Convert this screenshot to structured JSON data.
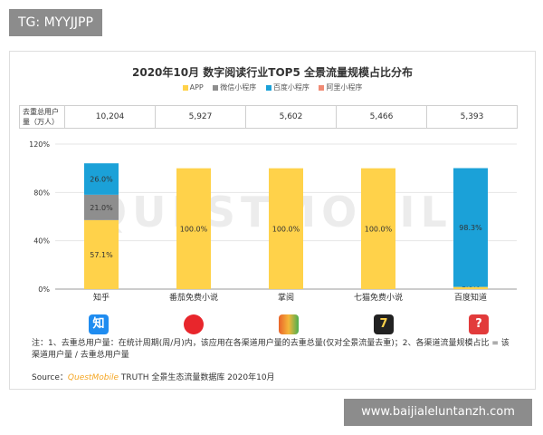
{
  "watermark_top": "TG: MYYJJPP",
  "watermark_bottom": "www.baijialeluntanzh.com",
  "colors": {
    "app": "#ffd24a",
    "wechat": "#8e8e8e",
    "baidu": "#1ba1d8",
    "alipay": "#f08a74",
    "zhihu_icon": "#1f8cf0",
    "fanqie_icon": "#e8262c",
    "zhangyue_icon": "#e9642a",
    "qimao_icon": "#222222",
    "baidu_icon": "#e23b3b"
  },
  "chart_data": {
    "type": "bar",
    "title": "2020年10月 数字阅读行业TOP5 全景流量规模占比分布",
    "categories": [
      "知乎",
      "番茄免费小说",
      "掌阅",
      "七猫免费小说",
      "百度知道"
    ],
    "series": [
      {
        "name": "APP",
        "values": [
          57.1,
          100.0,
          100.0,
          100.0,
          1.8
        ]
      },
      {
        "name": "微信小程序",
        "values": [
          21.0,
          0,
          0,
          0,
          0
        ]
      },
      {
        "name": "百度小程序",
        "values": [
          26.0,
          0,
          0,
          0,
          98.3
        ]
      },
      {
        "name": "阿里小程序",
        "values": [
          0,
          0,
          0,
          0,
          0
        ]
      }
    ],
    "bar_labels": [
      [
        "57.1%",
        "21.0%",
        "26.0%"
      ],
      [
        "100.0%"
      ],
      [
        "100.0%"
      ],
      [
        "100.0%"
      ],
      [
        "1.8%",
        "98.3%"
      ]
    ],
    "ylim": [
      0,
      120
    ],
    "yticks": [
      "0%",
      "40%",
      "80%",
      "120%"
    ],
    "stacked": true
  },
  "users_table": {
    "header": "去重总用户量（万人）",
    "values": [
      "10,204",
      "5,927",
      "5,602",
      "5,466",
      "5,393"
    ]
  },
  "app_icons": [
    "知",
    "",
    "",
    "7",
    "?"
  ],
  "note": "注：1、去重总用户量：在统计周期(周/月)内，该应用在各渠道用户量的去重总量(仅对全景流量去重)；2、各渠道流量规模占比 = 该渠道用户量 / 去重总用户量",
  "source": {
    "prefix": "Source：",
    "brand": "QuestMobile",
    "rest": " TRUTH 全景生态流量数据库 2020年10月"
  },
  "chart_watermark": "QUESTMOBILE"
}
